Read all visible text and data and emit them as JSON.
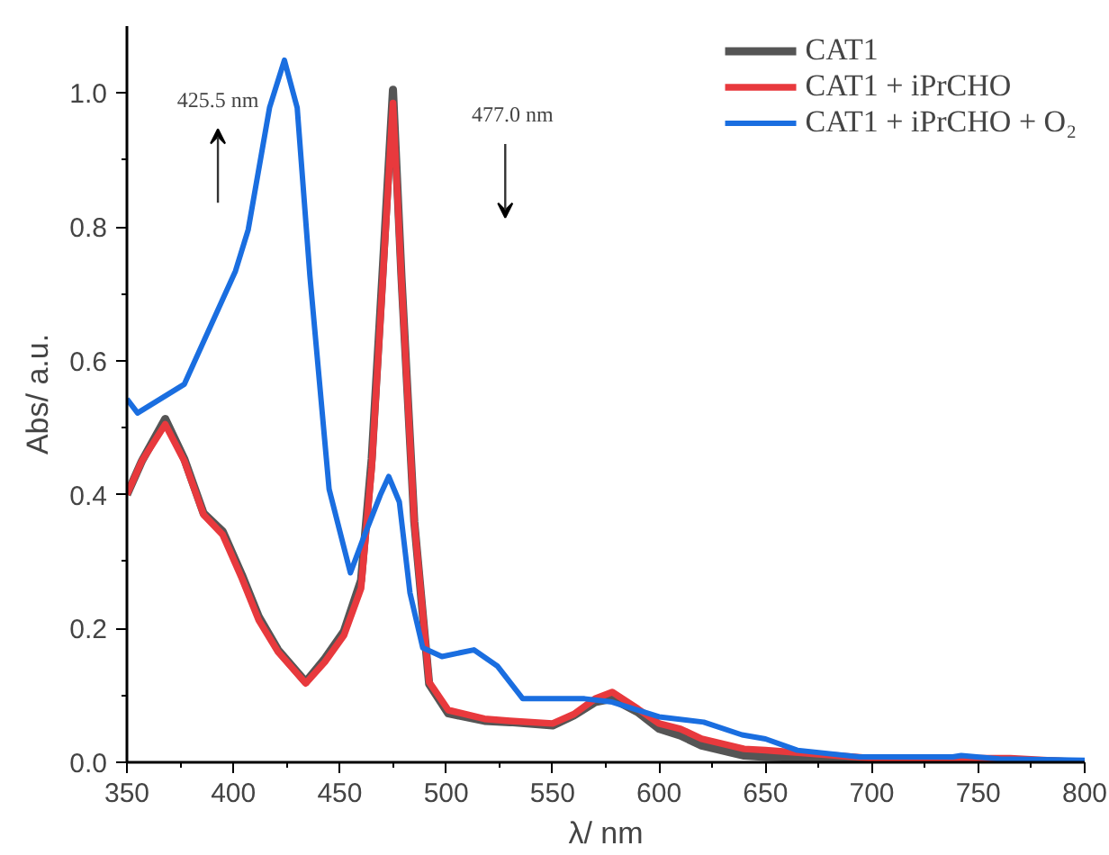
{
  "chart_data": {
    "type": "line",
    "xlabel": "λ/ nm",
    "ylabel": "Abs/ a.u.",
    "xlim": [
      350,
      800
    ],
    "ylim": [
      0,
      1.1
    ],
    "xticks": [
      350,
      400,
      450,
      500,
      550,
      600,
      650,
      700,
      750,
      800
    ],
    "yticks": [
      {
        "value": 0,
        "label": "0.0"
      },
      {
        "value": 0.2,
        "label": "0.2"
      },
      {
        "value": 0.4,
        "label": "0.4"
      },
      {
        "value": 0.6,
        "label": "0.6"
      },
      {
        "value": 0.8,
        "label": "0.8"
      },
      {
        "value": 1,
        "label": "1.0"
      }
    ],
    "grid": false,
    "legend": "top right",
    "marker": "none",
    "line_style": "solid",
    "annotations": [
      "425.5 nm",
      "477.0 nm"
    ],
    "series": [
      {
        "name": "CAT1",
        "color": "#555555",
        "x": [
          350,
          357,
          368,
          377,
          386,
          395,
          404,
          412,
          421,
          434,
          443,
          452,
          460,
          465,
          470,
          475,
          479,
          485,
          492,
          501,
          518,
          530,
          550,
          560,
          570,
          578,
          590,
          600,
          610,
          620,
          640,
          650,
          700,
          765,
          800
        ],
        "values": [
          0.4,
          0.45,
          0.513,
          0.453,
          0.372,
          0.345,
          0.28,
          0.217,
          0.168,
          0.12,
          0.155,
          0.196,
          0.272,
          0.453,
          0.725,
          1.005,
          0.725,
          0.36,
          0.117,
          0.073,
          0.062,
          0.06,
          0.055,
          0.07,
          0.09,
          0.095,
          0.075,
          0.05,
          0.04,
          0.025,
          0.01,
          0.008,
          0.004,
          0.003,
          0.0
        ]
      },
      {
        "name": "CAT1 + iPrCHO",
        "color": "#e8393d",
        "x": [
          350,
          357,
          368,
          377,
          386,
          395,
          404,
          412,
          421,
          434,
          443,
          452,
          460,
          465,
          470,
          475,
          479,
          485,
          492,
          501,
          518,
          530,
          550,
          560,
          570,
          578,
          590,
          600,
          610,
          620,
          640,
          650,
          700,
          765,
          800
        ],
        "values": [
          0.4,
          0.45,
          0.505,
          0.45,
          0.37,
          0.34,
          0.275,
          0.212,
          0.165,
          0.118,
          0.15,
          0.19,
          0.26,
          0.44,
          0.71,
          0.985,
          0.72,
          0.36,
          0.12,
          0.078,
          0.065,
          0.062,
          0.058,
          0.072,
          0.095,
          0.105,
          0.08,
          0.058,
          0.05,
          0.035,
          0.02,
          0.018,
          0.006,
          0.006,
          0.0
        ]
      },
      {
        "name": "CAT1 + iPrCHO + O₂",
        "color": "#1a6ee0",
        "x": [
          350,
          355,
          377,
          401,
          407,
          417,
          424,
          430,
          436,
          445,
          455,
          461,
          469,
          473,
          478,
          483,
          489,
          498,
          513,
          524,
          536,
          550,
          565,
          578,
          600,
          621,
          639,
          650,
          665,
          694,
          738,
          742,
          760,
          800
        ],
        "values": [
          0.543,
          0.522,
          0.565,
          0.734,
          0.796,
          0.978,
          1.049,
          0.978,
          0.726,
          0.408,
          0.283,
          0.334,
          0.399,
          0.427,
          0.389,
          0.253,
          0.171,
          0.158,
          0.168,
          0.144,
          0.095,
          0.095,
          0.095,
          0.09,
          0.068,
          0.06,
          0.041,
          0.035,
          0.018,
          0.008,
          0.008,
          0.01,
          0.005,
          0.003
        ]
      }
    ]
  }
}
